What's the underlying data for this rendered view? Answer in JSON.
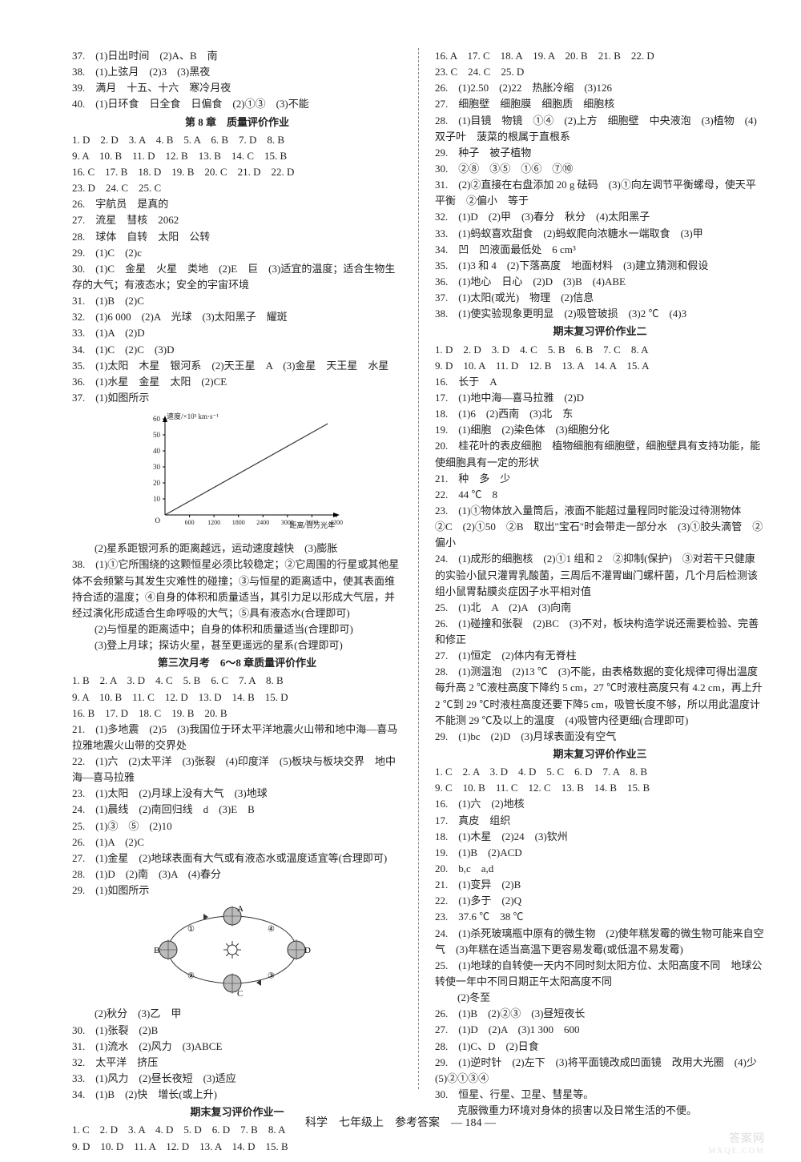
{
  "footer": "科学　七年级上　参考答案　— 184 —",
  "watermark": "答案网",
  "watermark_url": "MXQE.COM",
  "chart1": {
    "ylabel": "速度/×10³ km·s⁻¹",
    "xlabel": "距离/百万光年",
    "xlim": [
      0,
      4200
    ],
    "ylim": [
      0,
      60
    ],
    "yticks": [
      10,
      20,
      30,
      40,
      50,
      60
    ],
    "xticks": [
      600,
      1200,
      1800,
      2400,
      3000,
      3600,
      4200
    ],
    "line_color": "#333333",
    "axis_color": "#000000",
    "background_color": "#ffffff"
  },
  "diagram1": {
    "type": "orbit-ellipse",
    "labels_outer": [
      "A",
      "B",
      "C",
      "D"
    ],
    "markers": [
      "①",
      "②",
      "③",
      "④"
    ],
    "stroke": "#333333"
  },
  "left": [
    {
      "t": "37.　(1)日出时间　(2)A、B　南"
    },
    {
      "t": "38.　(1)上弦月　(2)3　(3)黑夜"
    },
    {
      "t": "39.　满月　十五、十六　寒冷月夜"
    },
    {
      "t": "40.　(1)日环食　日全食　日偏食　(2)①③　(3)不能"
    },
    {
      "t": "第 8 章　质量评价作业",
      "h": true
    },
    {
      "t": "1. D　2. D　3. A　4. B　5. A　6. B　7. D　8. B"
    },
    {
      "t": "9. A　10. B　11. D　12. B　13. B　14. C　15. B"
    },
    {
      "t": "16. C　17. B　18. D　19. B　20. C　21. D　22. D"
    },
    {
      "t": "23. D　24. C　25. C"
    },
    {
      "t": "26.　宇航员　是真的"
    },
    {
      "t": "27.　流星　彗核　2062"
    },
    {
      "t": "28.　球体　自转　太阳　公转"
    },
    {
      "t": "29.　(1)C　(2)c"
    },
    {
      "t": "30.　(1)C　金星　火星　类地　(2)E　巨　(3)适宜的温度；适合生物生存的大气；有液态水；安全的宇宙环境",
      "wrap": true
    },
    {
      "t": "31.　(1)B　(2)C"
    },
    {
      "t": "32.　(1)6 000　(2)A　光球　(3)太阳黑子　耀斑"
    },
    {
      "t": "33.　(1)A　(2)D"
    },
    {
      "t": "34.　(1)C　(2)C　(3)D"
    },
    {
      "t": "35.　(1)太阳　木星　银河系　(2)天王星　A　(3)金星　天王星　水星",
      "wrap": true
    },
    {
      "t": "36.　(1)水星　金星　太阳　(2)CE"
    },
    {
      "t": "37.　(1)如图所示"
    },
    {
      "t": "__CHART1__",
      "chart": 1
    },
    {
      "t": "(2)星系距银河系的距离越远，运动速度越快　(3)膨胀",
      "i": 1
    },
    {
      "t": "38.　(1)①它所围绕的这颗恒星必须比较稳定；②它周围的行星或其他星体不会频繁与其发生灾难性的碰撞；③与恒星的距离适中，使其表面维持合适的温度；④自身的体积和质量适当，其引力足以形成大气层，并经过演化形成适合生命呼吸的大气；⑤具有液态水(合理即可)",
      "wrap": true
    },
    {
      "t": "(2)与恒星的距离适中；自身的体积和质量适当(合理即可)",
      "i": 1
    },
    {
      "t": "(3)登上月球；探访火星，甚至更遥远的星系(合理即可)",
      "i": 1
    },
    {
      "t": "第三次月考　6～8 章质量评价作业",
      "h": true
    },
    {
      "t": "1. B　2. A　3. D　4. C　5. B　6. C　7. A　8. B"
    },
    {
      "t": "9. A　10. B　11. C　12. D　13. D　14. B　15. D"
    },
    {
      "t": "16. B　17. D　18. C　19. B　20. B"
    },
    {
      "t": "21.　(1)多地震　(2)5　(3)我国位于环太平洋地震火山带和地中海—喜马拉雅地震火山带的交界处",
      "wrap": true
    },
    {
      "t": "22.　(1)六　(2)太平洋　(3)张裂　(4)印度洋　(5)板块与板块交界　地中海—喜马拉雅",
      "wrap": true
    },
    {
      "t": "23.　(1)太阳　(2)月球上没有大气　(3)地球"
    },
    {
      "t": "24.　(1)晨线　(2)南回归线　d　(3)E　B"
    },
    {
      "t": "25.　(1)③　⑤　(2)10"
    },
    {
      "t": "26.　(1)A　(2)C"
    },
    {
      "t": "27.　(1)金星　(2)地球表面有大气或有液态水或温度适宜等(合理即可)",
      "wrap": true
    },
    {
      "t": "28.　(1)D　(2)南　(3)A　(4)春分"
    },
    {
      "t": "29.　(1)如图所示"
    },
    {
      "t": "__DIAGRAM1__",
      "diagram": 1
    },
    {
      "t": "(2)秋分　(3)乙　甲",
      "i": 1
    },
    {
      "t": "30.　(1)张裂　(2)B"
    },
    {
      "t": "31.　(1)流水　(2)风力　(3)ABCE"
    },
    {
      "t": "32.　太平洋　挤压"
    },
    {
      "t": "33.　(1)风力　(2)昼长夜短　(3)适应"
    },
    {
      "t": "34.　(1)B　(2)快　增长(或上升)"
    },
    {
      "t": "期末复习评价作业一",
      "h": true
    },
    {
      "t": "1. C　2. D　3. A　4. D　5. D　6. D　7. B　8. A"
    },
    {
      "t": "9. D　10. D　11. A　12. D　13. A　14. D　15. B"
    }
  ],
  "right": [
    {
      "t": "16. A　17. C　18. A　19. A　20. B　21. B　22. D"
    },
    {
      "t": "23. C　24. C　25. D"
    },
    {
      "t": "26.　(1)2.50　(2)22　热胀冷缩　(3)126"
    },
    {
      "t": "27.　细胞壁　细胞膜　细胞质　细胞核"
    },
    {
      "t": "28.　(1)目镜　物镜　①④　(2)上方　细胞壁　中央液泡　(3)植物　(4)双子叶　菠菜的根属于直根系",
      "wrap": true
    },
    {
      "t": "29.　种子　被子植物"
    },
    {
      "t": "30.　②⑧　③⑤　①⑥　⑦⑩"
    },
    {
      "t": "31.　(2)②直接在右盘添加 20 g 砝码　(3)①向左调节平衡螺母，使天平平衡　②偏小　等于",
      "wrap": true
    },
    {
      "t": "32.　(1)D　(2)甲　(3)春分　秋分　(4)太阳黑子"
    },
    {
      "t": "33.　(1)蚂蚁喜欢甜食　(2)蚂蚁爬向浓糖水一端取食　(3)甲"
    },
    {
      "t": "34.　凹　凹液面最低处　6 cm³"
    },
    {
      "t": "35.　(1)3 和 4　(2)下落高度　地面材料　(3)建立猜测和假设"
    },
    {
      "t": "36.　(1)地心　日心　(2)D　(3)B　(4)ABE"
    },
    {
      "t": "37.　(1)太阳(或光)　物理　(2)信息"
    },
    {
      "t": "38.　(1)使实验现象更明显　(2)吸管玻损　(3)2 ℃　(4)3"
    },
    {
      "t": "期末复习评价作业二",
      "h": true
    },
    {
      "t": "1. D　2. D　3. D　4. C　5. B　6. B　7. C　8. A"
    },
    {
      "t": "9. D　10. A　11. D　12. B　13. A　14. A　15. A"
    },
    {
      "t": "16.　长于　A"
    },
    {
      "t": "17.　(1)地中海—喜马拉雅　(2)D"
    },
    {
      "t": "18.　(1)6　(2)西南　(3)北　东"
    },
    {
      "t": "19.　(1)细胞　(2)染色体　(3)细胞分化"
    },
    {
      "t": "20.　桂花叶的表皮细胞　植物细胞有细胞壁，细胞壁具有支持功能，能使细胞具有一定的形状",
      "wrap": true
    },
    {
      "t": "21.　种　多　少"
    },
    {
      "t": "22.　44 ℃　8"
    },
    {
      "t": "23.　(1)①物体放入量筒后，液面不能超过量程同时能没过待测物体　②C　(2)①50　②B　取出\"宝石\"时会带走一部分水　(3)①胶头滴管　②偏小",
      "wrap": true
    },
    {
      "t": "24.　(1)成形的细胞核　(2)①1 组和 2　②抑制(保护)　③对若干只健康的实验小鼠只灌胃乳酸菌，三周后不灌胃幽门螺杆菌，几个月后检测该组小鼠胃黏膜炎症因子水平相对值",
      "wrap": true
    },
    {
      "t": "25.　(1)北　A　(2)A　(3)向南"
    },
    {
      "t": "26.　(1)碰撞和张裂　(2)BC　(3)不对，板块构造学说还需要检验、完善和修正",
      "wrap": true
    },
    {
      "t": "27.　(1)恒定　(2)体内有无脊柱"
    },
    {
      "t": "28.　(1)测温泡　(2)13 ℃　(3)不能，由表格数据的变化规律可得出温度每升高 2 ℃液柱高度下降约 5 cm，27 ℃时液柱高度只有 4.2 cm，再上升 2 ℃到 29 ℃时液柱高度还要下降5 cm，吸管长度不够，所以用此温度计不能测 29 ℃及以上的温度　(4)吸管内径更细(合理即可)",
      "wrap": true
    },
    {
      "t": "29.　(1)bc　(2)D　(3)月球表面没有空气"
    },
    {
      "t": "期末复习评价作业三",
      "h": true
    },
    {
      "t": "1. C　2. A　3. D　4. D　5. C　6. D　7. A　8. B"
    },
    {
      "t": "9. C　10. B　11. C　12. C　13. B　14. B　15. B"
    },
    {
      "t": "16.　(1)六　(2)地核"
    },
    {
      "t": "17.　真皮　组织"
    },
    {
      "t": "18.　(1)木星　(2)24　(3)钦州"
    },
    {
      "t": "19.　(1)B　(2)ACD"
    },
    {
      "t": "20.　b,c　a,d"
    },
    {
      "t": "21.　(1)变异　(2)B"
    },
    {
      "t": "22.　(1)多于　(2)Q"
    },
    {
      "t": "23.　37.6 ℃　38 ℃"
    },
    {
      "t": "24.　(1)杀死玻璃瓶中原有的微生物　(2)使年糕发霉的微生物可能来自空气　(3)年糕在适当高温下更容易发霉(或低温不易发霉)",
      "wrap": true
    },
    {
      "t": "25.　(1)地球的自转使一天内不同时刻太阳方位、太阳高度不同　地球公转使一年中不同日期正午太阳高度不同",
      "wrap": true
    },
    {
      "t": "(2)冬至",
      "i": 1
    },
    {
      "t": "26.　(1)B　(2)②③　(3)昼短夜长"
    },
    {
      "t": "27.　(1)D　(2)A　(3)1 300　600"
    },
    {
      "t": "28.　(1)C、D　(2)日食"
    },
    {
      "t": "29.　(1)逆时针　(2)左下　(3)将平面镜改成凹面镜　改用大光圈　(4)少　(5)②①③④",
      "wrap": true
    },
    {
      "t": "30.　恒星、行星、卫星、彗星等。"
    },
    {
      "t": "克服微重力环境对身体的损害以及日常生活的不便。",
      "i": 1
    }
  ]
}
